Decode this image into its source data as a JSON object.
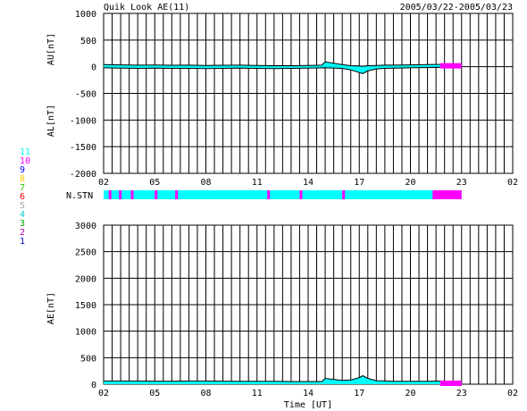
{
  "header": {
    "title": "Quik Look AE(11)",
    "date_range": "2005/03/22-2005/03/23"
  },
  "colors": {
    "signal": "#00ffff",
    "sparse": "#ff00ff",
    "legend": [
      "#0000cc",
      "#aa00aa",
      "#00aa00",
      "#00cccc",
      "#aaaaaa",
      "#ff0000",
      "#33cc00",
      "#ffcc00",
      "#0000ff",
      "#ff00ff",
      "#00ffff"
    ]
  },
  "station_bar": {
    "label": "N.STN"
  },
  "station_legend": [
    "1",
    "2",
    "3",
    "4",
    "5",
    "6",
    "7",
    "8",
    "9",
    "10",
    "11"
  ],
  "chart_data": [
    {
      "type": "area",
      "name": "AU/AL",
      "ylabel_upper": "AU[nT]",
      "ylabel_lower": "AL[nT]",
      "ylim": [
        -2000,
        1000
      ],
      "yticks": [
        "1000",
        "500",
        "0",
        "-500",
        "-1000",
        "-1500",
        "-2000"
      ],
      "xlim_hours": [
        0,
        24
      ],
      "xticks": [
        "02",
        "05",
        "08",
        "11",
        "14",
        "17",
        "20",
        "23",
        "02"
      ],
      "xtick_hours": [
        0,
        3,
        6,
        9,
        12,
        15,
        18,
        21,
        24
      ],
      "data_end_hour": 21,
      "grid": true,
      "series": [
        {
          "x": [
            0,
            1,
            2,
            3,
            4,
            5,
            6,
            7,
            8,
            9,
            10,
            11,
            12,
            12.8,
            13,
            14,
            14.5,
            15,
            15.2,
            15.5,
            16,
            16.5,
            17,
            18,
            19,
            19.8,
            20,
            20.5,
            21
          ],
          "y": [
            40,
            35,
            30,
            32,
            28,
            30,
            25,
            28,
            30,
            25,
            20,
            20,
            25,
            30,
            90,
            40,
            20,
            15,
            10,
            20,
            25,
            30,
            30,
            35,
            40,
            45,
            50,
            40,
            30
          ]
        },
        {
          "x": [
            0,
            1,
            2,
            3,
            4,
            5,
            6,
            7,
            8,
            9,
            10,
            11,
            12,
            13,
            14,
            14.5,
            15,
            15.2,
            15.5,
            16,
            16.5,
            17,
            18,
            19,
            20,
            20.5,
            21
          ],
          "y": [
            -20,
            -25,
            -30,
            -25,
            -30,
            -30,
            -35,
            -30,
            -25,
            -30,
            -35,
            -30,
            -25,
            -20,
            -30,
            -60,
            -110,
            -130,
            -80,
            -40,
            -30,
            -25,
            -20,
            -15,
            -10,
            -10,
            -15
          ]
        }
      ]
    },
    {
      "type": "area",
      "name": "AE",
      "ylabel": "AE[nT]",
      "xlabel": "Time [UT]",
      "ylim": [
        0,
        3000
      ],
      "yticks": [
        "3000",
        "2500",
        "2000",
        "1500",
        "1000",
        "500",
        "0"
      ],
      "xlim_hours": [
        0,
        24
      ],
      "xticks": [
        "02",
        "05",
        "08",
        "11",
        "14",
        "17",
        "20",
        "23",
        "02"
      ],
      "xtick_hours": [
        0,
        3,
        6,
        9,
        12,
        15,
        18,
        21,
        24
      ],
      "data_end_hour": 21,
      "grid": true,
      "series": [
        {
          "x": [
            0,
            1,
            2,
            3,
            4,
            5,
            6,
            7,
            8,
            9,
            10,
            11,
            12,
            12.8,
            13,
            14,
            14.5,
            15,
            15.2,
            15.5,
            16,
            16.5,
            17,
            18,
            19,
            20,
            20.5,
            21
          ],
          "y": [
            60,
            60,
            60,
            57,
            58,
            60,
            60,
            58,
            55,
            55,
            55,
            50,
            50,
            50,
            110,
            70,
            80,
            125,
            160,
            110,
            65,
            60,
            55,
            55,
            55,
            60,
            50,
            45
          ]
        }
      ]
    }
  ]
}
